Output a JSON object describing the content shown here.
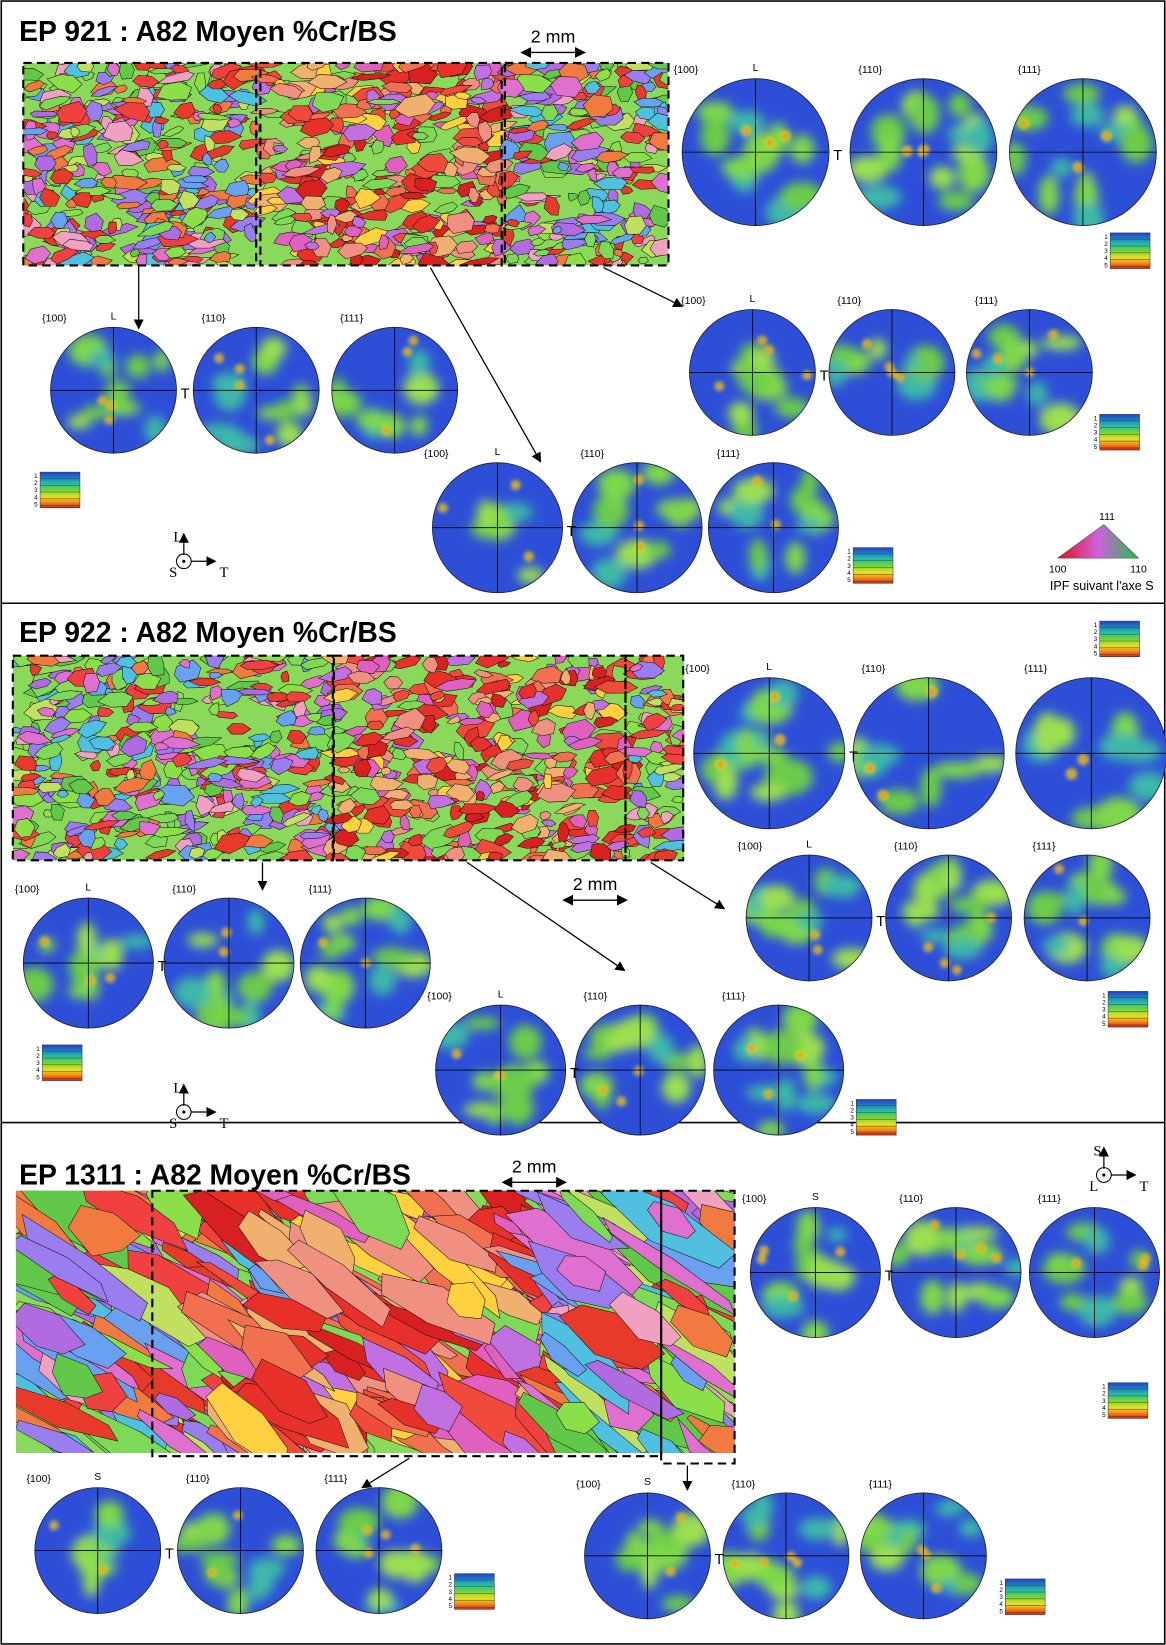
{
  "panels": [
    {
      "title": "EP 921 : A82 Moyen %Cr/BS",
      "scale_bar": "2 mm",
      "pole_figure_sets": [
        {
          "labels": [
            "{100}",
            "{110}",
            "{111}"
          ],
          "axis_top": "L",
          "axis_right": "T",
          "legend": [
            "1",
            "2",
            "3",
            "4",
            "5"
          ]
        },
        {
          "labels": [
            "{100}",
            "{110}",
            "{111}"
          ],
          "axis_top": "L",
          "axis_right": "T",
          "legend": [
            "1",
            "2",
            "3",
            "4",
            "5"
          ]
        },
        {
          "labels": [
            "{100}",
            "{110}",
            "{111}"
          ],
          "axis_top": "L",
          "axis_right": "T",
          "legend": [
            "1",
            "2",
            "3",
            "4",
            "5"
          ]
        },
        {
          "labels": [
            "{100}",
            "{110}",
            "{111}"
          ],
          "axis_top": "L",
          "axis_right": "T",
          "legend": [
            "1",
            "2",
            "3",
            "4",
            "5"
          ]
        }
      ],
      "axes": {
        "up": "L",
        "center": "S",
        "right": "T"
      },
      "ipf": {
        "top": "111",
        "left": "100",
        "right": "110",
        "caption": "IPF suivant l'axe S"
      }
    },
    {
      "title": "EP 922 : A82 Moyen %Cr/BS",
      "scale_bar": "2 mm",
      "pole_figure_sets": [
        {
          "labels": [
            "{100}",
            "{110}",
            "{111}"
          ],
          "axis_top": "L",
          "axis_right": "T",
          "legend": [
            "1",
            "2",
            "3",
            "4",
            "5"
          ]
        },
        {
          "labels": [
            "{100}",
            "{110}",
            "{111}"
          ],
          "axis_top": "L",
          "axis_right": "T",
          "legend": [
            "1",
            "2",
            "3",
            "4",
            "5"
          ]
        },
        {
          "labels": [
            "{100}",
            "{110}",
            "{111}"
          ],
          "axis_top": "L",
          "axis_right": "T",
          "legend": [
            "1",
            "2",
            "3",
            "4",
            "5"
          ]
        },
        {
          "labels": [
            "{100}",
            "{110}",
            "{111}"
          ],
          "axis_top": "L",
          "axis_right": "T",
          "legend": [
            "1",
            "2",
            "3",
            "4",
            "5"
          ]
        }
      ],
      "axes": {
        "up": "L",
        "center": "S",
        "right": "T"
      }
    },
    {
      "title": "EP 1311 : A82 Moyen %Cr/BS",
      "scale_bar": "2 mm",
      "pole_figure_sets": [
        {
          "labels": [
            "{100}",
            "{110}",
            "{111}"
          ],
          "axis_top": "S",
          "axis_right": "T",
          "legend": [
            "1",
            "2",
            "3",
            "4",
            "5"
          ]
        },
        {
          "labels": [
            "{100}",
            "{110}",
            "{111}"
          ],
          "axis_top": "S",
          "axis_right": "T",
          "legend": [
            "1",
            "2",
            "3",
            "4",
            "5"
          ]
        },
        {
          "labels": [
            "{100}",
            "{110}",
            "{111}"
          ],
          "axis_top": "S",
          "axis_right": "T",
          "legend": [
            "1",
            "2",
            "3",
            "4",
            "5"
          ]
        }
      ],
      "axes": {
        "up": "S",
        "center": "L",
        "right": "T"
      }
    }
  ]
}
